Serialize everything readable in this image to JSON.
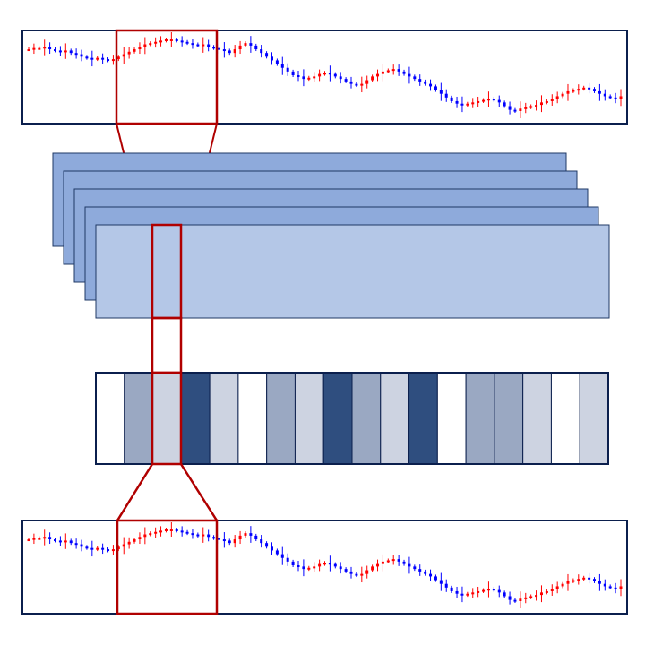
{
  "colors": {
    "frame": "#0b1f4d",
    "highlight": "#b00000",
    "up": "#ff0000",
    "down": "#0000ff",
    "layer_back": "#8eaadb",
    "layer_front": "#b4c7e7",
    "layer_stroke": "#1f3864"
  },
  "price_series": [
    1.0,
    1.01,
    1.01,
    1.02,
    1.0,
    0.99,
    0.98,
    0.99,
    0.97,
    0.96,
    0.94,
    0.93,
    0.92,
    0.93,
    0.92,
    0.91,
    0.92,
    0.94,
    0.96,
    0.98,
    1.0,
    1.02,
    1.04,
    1.05,
    1.06,
    1.07,
    1.08,
    1.08,
    1.07,
    1.06,
    1.05,
    1.04,
    1.03,
    1.04,
    1.02,
    1.01,
    1.0,
    0.99,
    0.97,
    1.0,
    1.03,
    1.05,
    1.03,
    1.0,
    0.97,
    0.94,
    0.91,
    0.88,
    0.85,
    0.82,
    0.79,
    0.78,
    0.76,
    0.77,
    0.78,
    0.8,
    0.81,
    0.8,
    0.78,
    0.76,
    0.74,
    0.72,
    0.71,
    0.72,
    0.75,
    0.78,
    0.8,
    0.82,
    0.83,
    0.84,
    0.82,
    0.8,
    0.78,
    0.76,
    0.74,
    0.72,
    0.7,
    0.67,
    0.64,
    0.61,
    0.58,
    0.56,
    0.55,
    0.56,
    0.57,
    0.58,
    0.59,
    0.6,
    0.59,
    0.57,
    0.54,
    0.51,
    0.5,
    0.52,
    0.53,
    0.54,
    0.55,
    0.57,
    0.58,
    0.6,
    0.62,
    0.64,
    0.66,
    0.67,
    0.68,
    0.69,
    0.68,
    0.66,
    0.64,
    0.62,
    0.61,
    0.6,
    0.62
  ],
  "candle_wick_pattern": [
    0,
    1,
    0,
    2,
    1,
    0,
    1,
    2,
    0,
    1,
    1,
    0,
    2,
    0,
    1
  ],
  "layers": 5,
  "selected_segment_index": 2,
  "segment_shades": [
    0,
    2,
    1,
    3,
    1,
    0,
    2,
    1,
    3,
    2,
    1,
    3,
    0,
    2,
    2,
    1,
    0,
    1
  ],
  "segment_palette": [
    "#ffffff",
    "#cdd3e1",
    "#9aa8c2",
    "#2f4e7f",
    "#687da4",
    "#00205a"
  ]
}
